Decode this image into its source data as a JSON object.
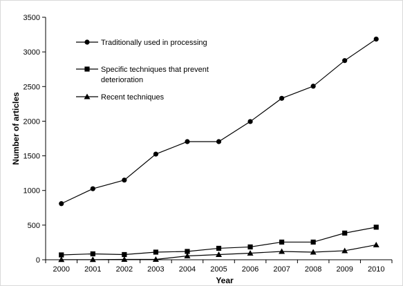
{
  "chart_data": {
    "type": "line",
    "title": "",
    "xlabel": "Year",
    "ylabel": "Number of articles",
    "x": [
      "2000",
      "2001",
      "2002",
      "2003",
      "2004",
      "2005",
      "2006",
      "2007",
      "2008",
      "2009",
      "2010"
    ],
    "ylim": [
      0,
      3500
    ],
    "yticks": [
      0,
      500,
      1000,
      1500,
      2000,
      2500,
      3000,
      3500
    ],
    "grid": false,
    "legend_position": "top-left",
    "series": [
      {
        "name": "Traditionally used in processing",
        "marker": "circle",
        "values": [
          810,
          1025,
          1150,
          1525,
          1705,
          1705,
          1995,
          2330,
          2505,
          2875,
          3185
        ]
      },
      {
        "name": "Specific techniques that prevent deterioration",
        "marker": "square",
        "values": [
          70,
          85,
          75,
          110,
          120,
          165,
          185,
          255,
          255,
          385,
          470
        ]
      },
      {
        "name": "Recent techniques",
        "marker": "triangle",
        "values": [
          2,
          2,
          5,
          5,
          55,
          75,
          95,
          120,
          110,
          130,
          215
        ]
      }
    ],
    "legend_lines": [
      [
        "Traditionally used in processing"
      ],
      [
        "Specific techniques that prevent",
        "deterioration"
      ],
      [
        "Recent techniques"
      ]
    ]
  }
}
